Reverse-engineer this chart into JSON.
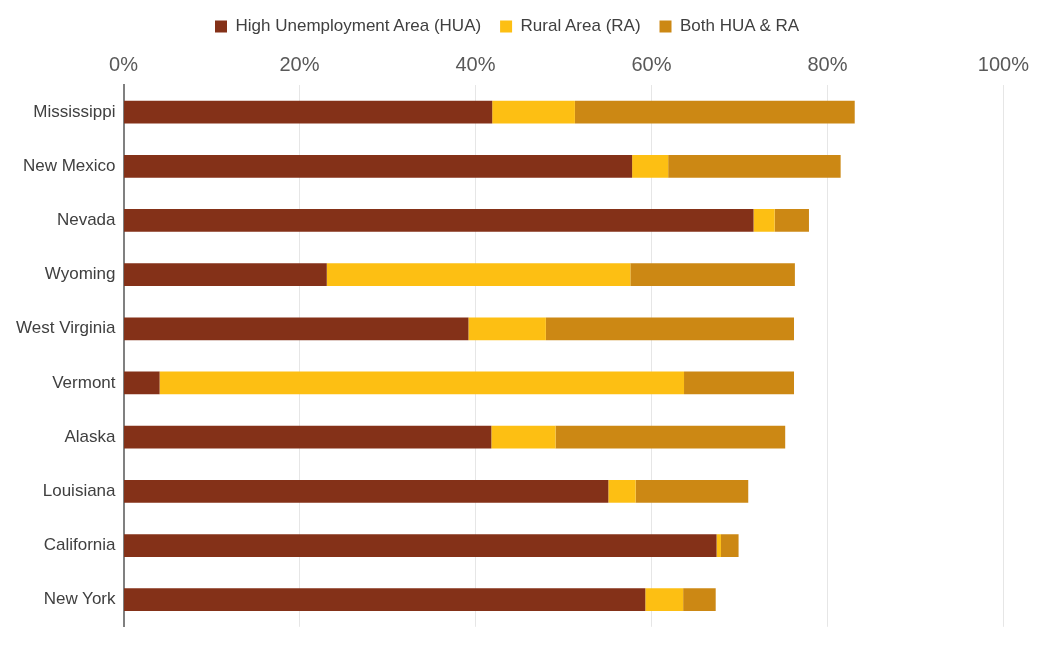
{
  "chart_data": {
    "type": "bar",
    "orientation": "horizontal",
    "stacked": true,
    "categories": [
      "Mississippi",
      "New Mexico",
      "Nevada",
      "Wyoming",
      "West Virginia",
      "Vermont",
      "Alaska",
      "Louisiana",
      "California",
      "New York"
    ],
    "series": [
      {
        "name": "High Unemployment Area (HUA)",
        "color": "#843118",
        "values": [
          41.9,
          57.8,
          71.6,
          23.1,
          39.2,
          4.1,
          41.8,
          55.1,
          67.4,
          59.3
        ]
      },
      {
        "name": "Rural Area (RA)",
        "color": "#fdbf13",
        "values": [
          9.4,
          4.1,
          2.4,
          34.5,
          8.8,
          59.6,
          7.3,
          3.1,
          0.5,
          4.3
        ]
      },
      {
        "name": "Both HUA & RA",
        "color": "#cc8814",
        "values": [
          31.8,
          19.6,
          3.9,
          18.7,
          28.2,
          12.5,
          26.1,
          12.8,
          2.0,
          3.7
        ]
      }
    ],
    "xlim": [
      0,
      100
    ],
    "xticks": [
      {
        "value": 0,
        "label": "0%"
      },
      {
        "value": 20,
        "label": "20%"
      },
      {
        "value": 40,
        "label": "40%"
      },
      {
        "value": 60,
        "label": "60%"
      },
      {
        "value": 80,
        "label": "80%"
      },
      {
        "value": 100,
        "label": "100%"
      }
    ],
    "grid": "x",
    "legend": "top"
  }
}
